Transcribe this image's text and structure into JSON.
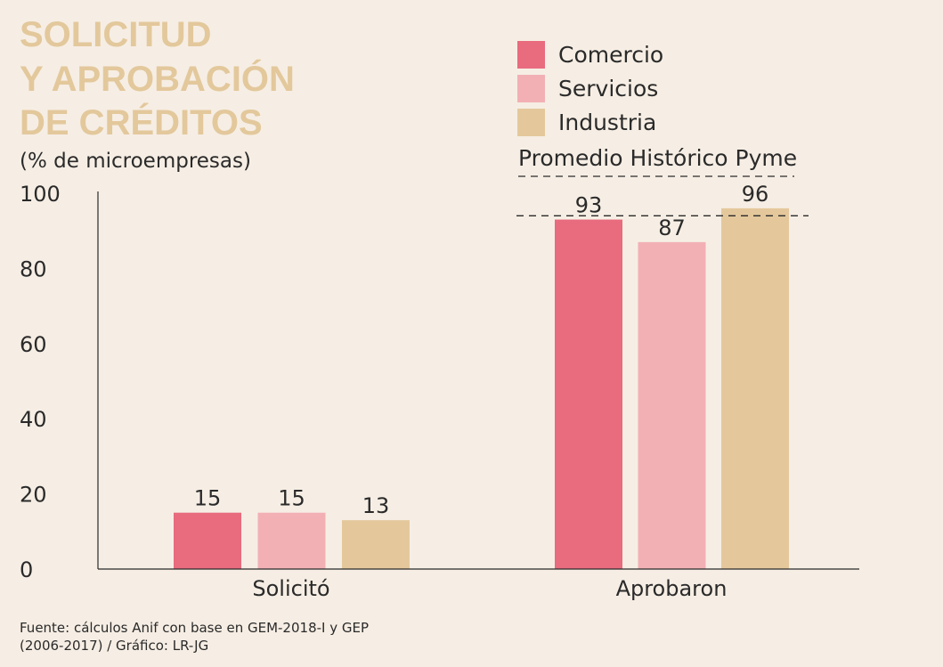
{
  "chart_data": {
    "type": "bar",
    "title_lines": [
      "SOLICITUD",
      "Y APROBACIÓN",
      "DE CRÉDITOS"
    ],
    "subtitle": "(% de microempresas)",
    "categories": [
      "Solicitó",
      "Aprobaron"
    ],
    "series": [
      {
        "name": "Comercio",
        "values": [
          15,
          93
        ],
        "color": "#e86b7e"
      },
      {
        "name": "Servicios",
        "values": [
          15,
          87
        ],
        "color": "#f2b0b5"
      },
      {
        "name": "Industria",
        "values": [
          13,
          96
        ],
        "color": "#e4c89c"
      }
    ],
    "reference_line": {
      "name": "Promedio Histórico Pyme",
      "value": 94,
      "style": "dashed"
    },
    "yticks": [
      "0",
      "20",
      "40",
      "60",
      "80",
      "100"
    ],
    "ylim": [
      0,
      100
    ],
    "grid": false,
    "legend": "top-right",
    "source": [
      "Fuente: cálculos Anif con base en GEM-2018-I y GEP",
      "(2006-2017) / Gráfico: LR-JG"
    ]
  }
}
